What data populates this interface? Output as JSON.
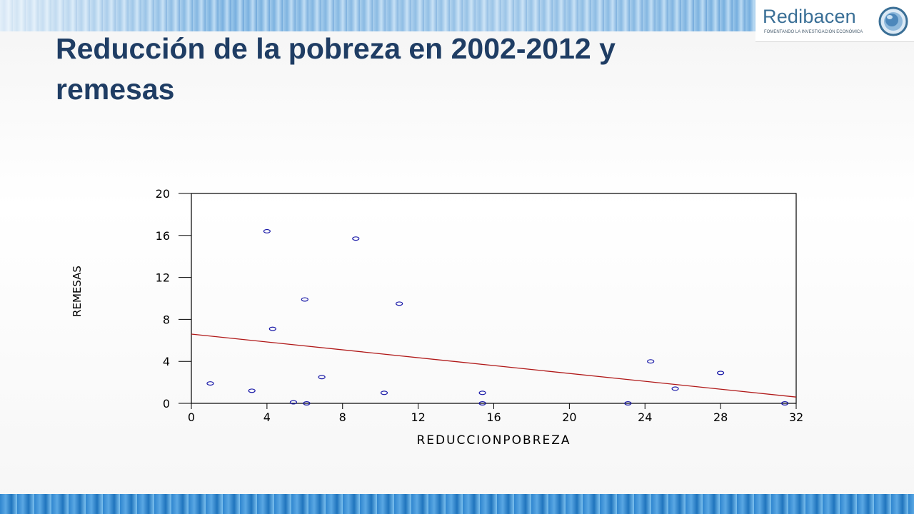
{
  "header": {
    "title_line1": "Reducción de la pobreza en 2002-2012 y",
    "title_line2": "remesas"
  },
  "logo": {
    "name": "Redibacen",
    "tagline": "FOMENTANDO LA INVESTIGACIÓN ECONÓMICA"
  },
  "colors": {
    "title": "#1f3d64",
    "points": "#1a1aa8",
    "regression_line": "#b01818",
    "band_blue": "#3f8bcf"
  },
  "chart_data": {
    "type": "scatter",
    "xlabel": "REDUCCIONPOBREZA",
    "ylabel": "REMESAS",
    "xlim": [
      0,
      32
    ],
    "ylim": [
      0,
      20
    ],
    "xticks": [
      0,
      4,
      8,
      12,
      16,
      20,
      24,
      28,
      32
    ],
    "yticks": [
      0,
      4,
      8,
      12,
      16,
      20
    ],
    "grid": false,
    "points": [
      {
        "x": 1.0,
        "y": 1.9
      },
      {
        "x": 3.2,
        "y": 1.2
      },
      {
        "x": 4.0,
        "y": 16.4
      },
      {
        "x": 4.3,
        "y": 7.1
      },
      {
        "x": 5.4,
        "y": 0.1
      },
      {
        "x": 6.0,
        "y": 9.9
      },
      {
        "x": 6.1,
        "y": 0.0
      },
      {
        "x": 6.9,
        "y": 2.5
      },
      {
        "x": 8.7,
        "y": 15.7
      },
      {
        "x": 10.2,
        "y": 1.0
      },
      {
        "x": 11.0,
        "y": 9.5
      },
      {
        "x": 15.4,
        "y": 1.0
      },
      {
        "x": 15.4,
        "y": 0.0
      },
      {
        "x": 23.1,
        "y": 0.0
      },
      {
        "x": 24.3,
        "y": 4.0
      },
      {
        "x": 25.6,
        "y": 1.4
      },
      {
        "x": 28.0,
        "y": 2.9
      },
      {
        "x": 31.4,
        "y": 0.0
      }
    ],
    "regression_line": {
      "x": [
        0,
        32
      ],
      "y": [
        6.6,
        0.6
      ]
    }
  }
}
